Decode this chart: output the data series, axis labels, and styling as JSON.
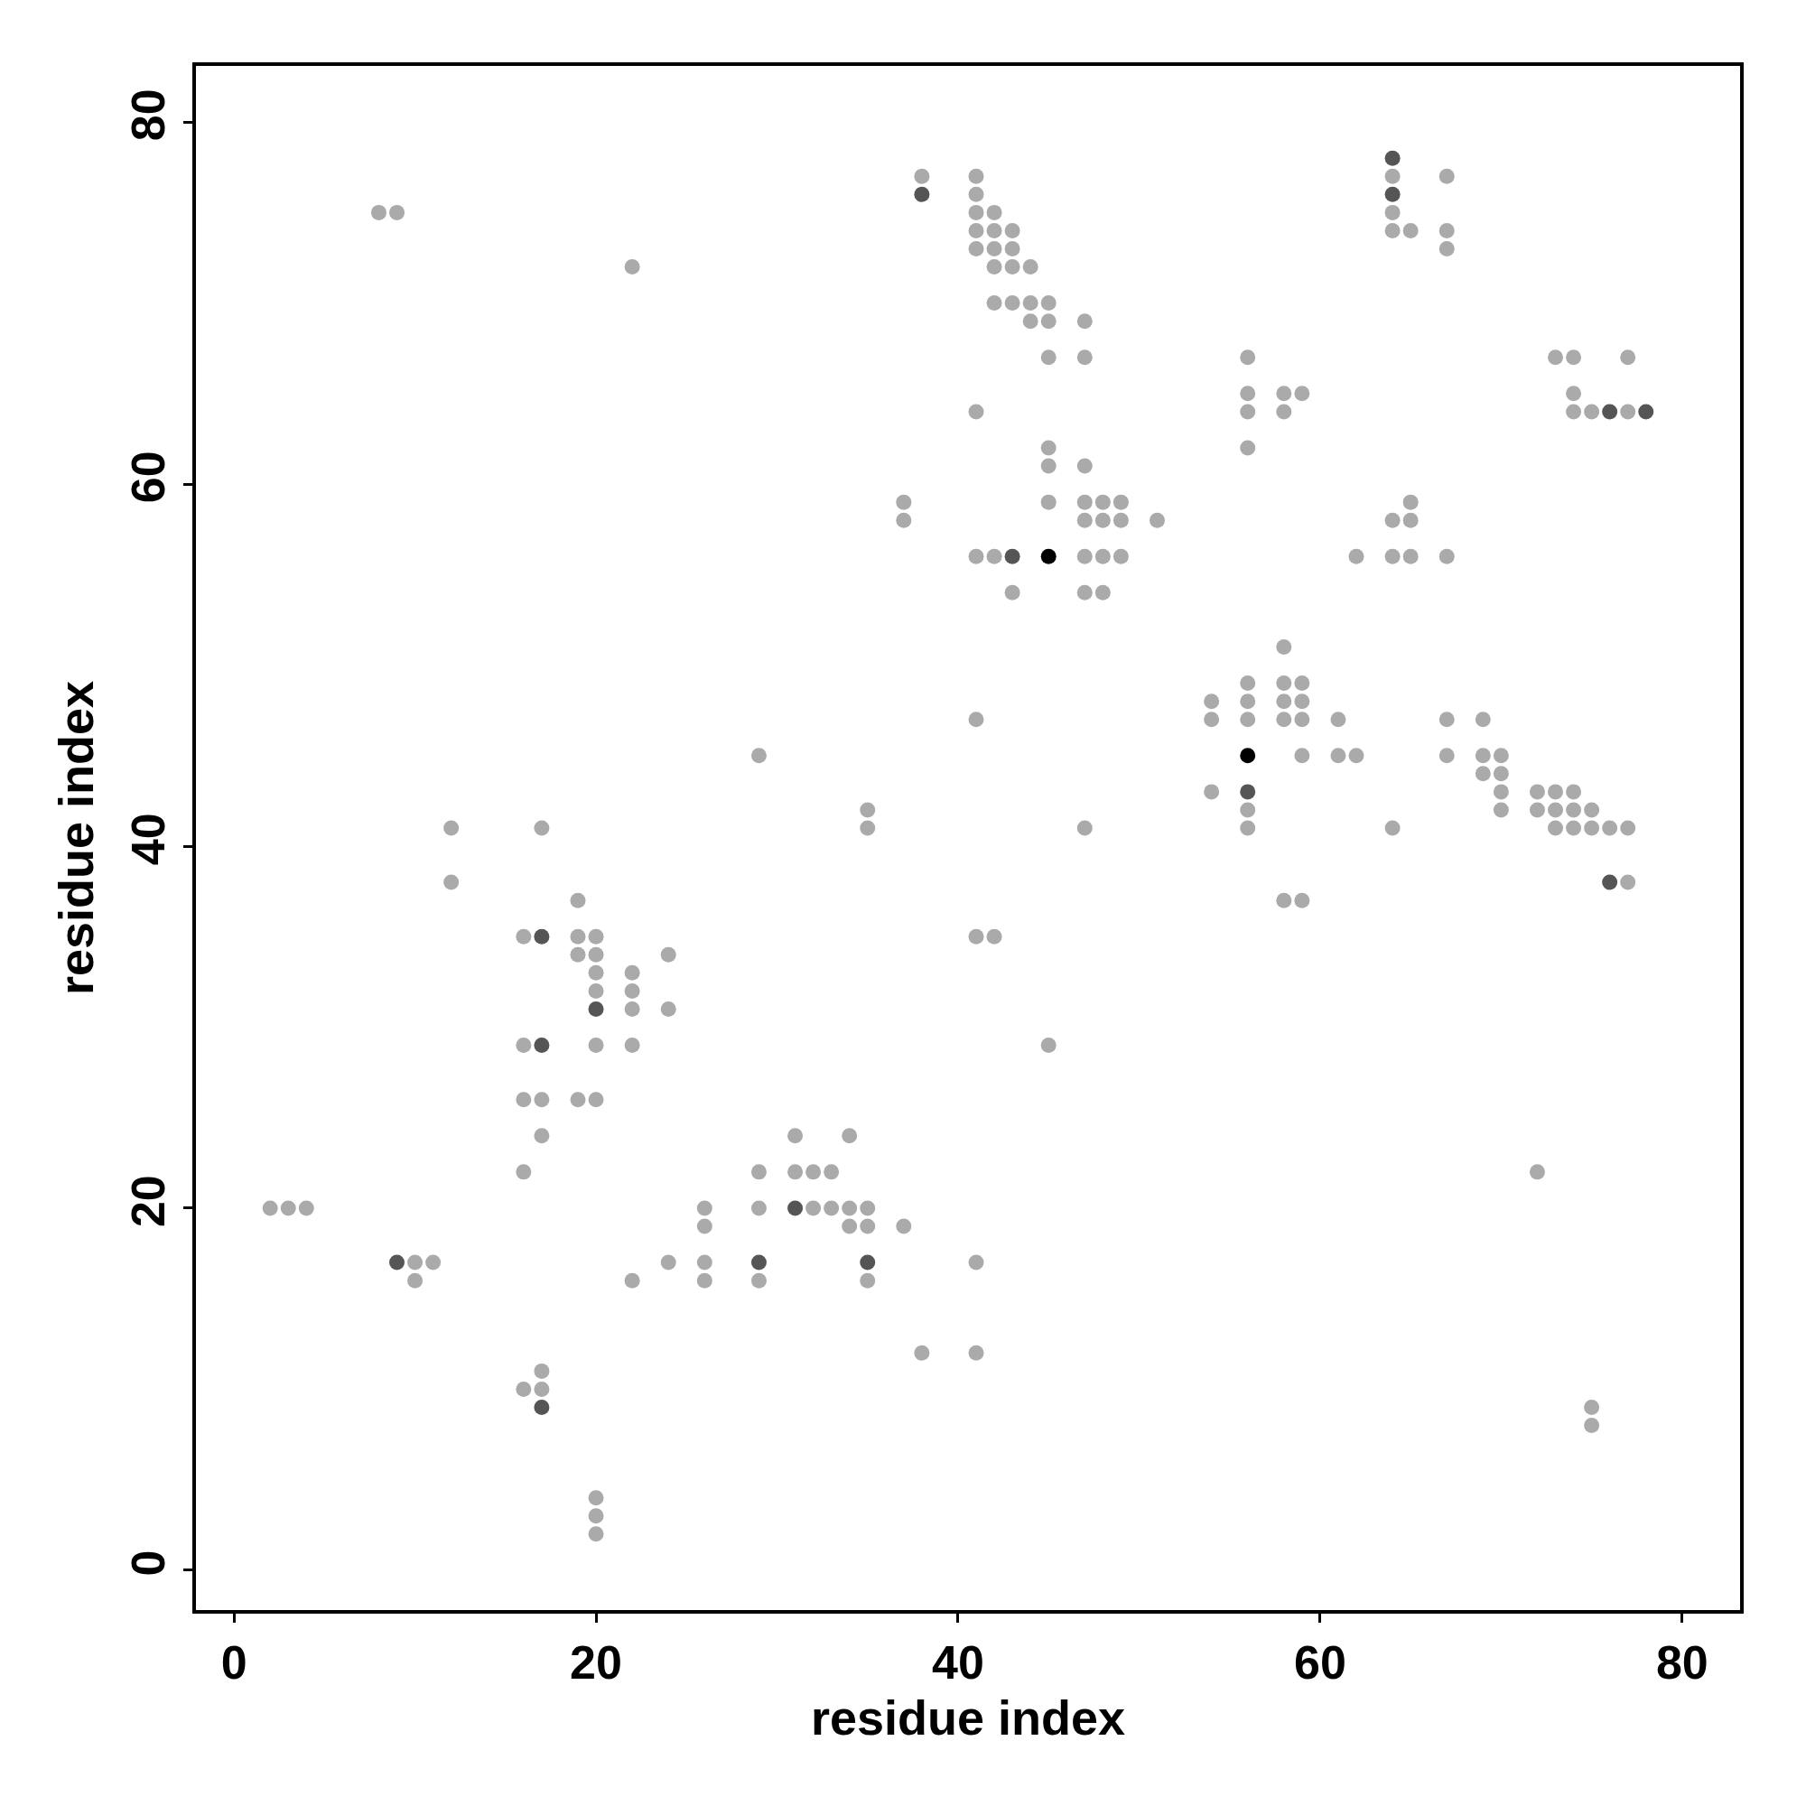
{
  "chart_data": {
    "type": "scatter",
    "xlabel": "residue index",
    "ylabel": "residue index",
    "xlim": [
      -2.1,
      83.2
    ],
    "ylim": [
      -2.2,
      83.1
    ],
    "xticks": [
      0,
      20,
      40,
      60,
      80
    ],
    "yticks": [
      0,
      20,
      40,
      60,
      80
    ],
    "marker": "circle",
    "series": [
      {
        "color": "#aaaaaa",
        "x": [
          38,
          41,
          64,
          67,
          41,
          8,
          9,
          41,
          42,
          64,
          41,
          42,
          43,
          64,
          65,
          67,
          41,
          42,
          43,
          67,
          22,
          42,
          43,
          44,
          42,
          43,
          44,
          45,
          44,
          45,
          47,
          45,
          47,
          56,
          73,
          74,
          77,
          56,
          58,
          59,
          74,
          41,
          56,
          58,
          74,
          75,
          77,
          45,
          56,
          45,
          47,
          37,
          45,
          47,
          48,
          49,
          65,
          37,
          47,
          48,
          49,
          51,
          64,
          65,
          41,
          42,
          47,
          48,
          49,
          62,
          64,
          65,
          67,
          43,
          47,
          48,
          58,
          56,
          58,
          59,
          54,
          56,
          58,
          59,
          41,
          54,
          56,
          58,
          59,
          61,
          67,
          69,
          29,
          59,
          61,
          62,
          67,
          69,
          70,
          69,
          70,
          54,
          70,
          72,
          73,
          74,
          35,
          56,
          70,
          72,
          73,
          74,
          75,
          12,
          17,
          35,
          47,
          56,
          64,
          73,
          74,
          75,
          76,
          77,
          12,
          77,
          19,
          58,
          59,
          16,
          19,
          20,
          41,
          42,
          19,
          20,
          24,
          20,
          22,
          20,
          22,
          22,
          24,
          16,
          20,
          22,
          45,
          16,
          17,
          19,
          20,
          17,
          31,
          34,
          16,
          29,
          31,
          32,
          33,
          72,
          2,
          3,
          4,
          26,
          29,
          32,
          33,
          34,
          35,
          26,
          34,
          35,
          37,
          10,
          11,
          24,
          26,
          41,
          10,
          22,
          26,
          29,
          35,
          38,
          41,
          17,
          16,
          17,
          75,
          75,
          20,
          20,
          20
        ],
        "values": [
          77,
          77,
          77,
          77,
          76,
          75,
          75,
          75,
          75,
          75,
          74,
          74,
          74,
          74,
          74,
          74,
          73,
          73,
          73,
          73,
          72,
          72,
          72,
          72,
          70,
          70,
          70,
          70,
          69,
          69,
          69,
          67,
          67,
          67,
          67,
          67,
          67,
          65,
          65,
          65,
          65,
          64,
          64,
          64,
          64,
          64,
          64,
          62,
          62,
          61,
          61,
          59,
          59,
          59,
          59,
          59,
          59,
          58,
          58,
          58,
          58,
          58,
          58,
          58,
          56,
          56,
          56,
          56,
          56,
          56,
          56,
          56,
          56,
          54,
          54,
          54,
          51,
          49,
          49,
          49,
          48,
          48,
          48,
          48,
          47,
          47,
          47,
          47,
          47,
          47,
          47,
          47,
          45,
          45,
          45,
          45,
          45,
          45,
          45,
          44,
          44,
          43,
          43,
          43,
          43,
          43,
          42,
          42,
          42,
          42,
          42,
          42,
          42,
          41,
          41,
          41,
          41,
          41,
          41,
          41,
          41,
          41,
          41,
          41,
          38,
          38,
          37,
          37,
          37,
          35,
          35,
          35,
          35,
          35,
          34,
          34,
          34,
          33,
          33,
          32,
          32,
          31,
          31,
          29,
          29,
          29,
          29,
          26,
          26,
          26,
          26,
          24,
          24,
          24,
          22,
          22,
          22,
          22,
          22,
          22,
          20,
          20,
          20,
          20,
          20,
          20,
          20,
          20,
          20,
          19,
          19,
          19,
          19,
          17,
          17,
          17,
          17,
          17,
          16,
          16,
          16,
          16,
          16,
          12,
          12,
          11,
          10,
          10,
          9,
          8,
          4,
          3,
          2
        ]
      },
      {
        "color": "#555555",
        "x": [
          64,
          38,
          64,
          76,
          78,
          43,
          56,
          76,
          17,
          20,
          17,
          31,
          9,
          29,
          35,
          17
        ],
        "values": [
          78,
          76,
          76,
          64,
          64,
          56,
          43,
          38,
          35,
          31,
          29,
          20,
          17,
          17,
          17,
          9
        ]
      },
      {
        "color": "#000000",
        "x": [
          45,
          56
        ],
        "values": [
          56,
          45
        ]
      }
    ]
  }
}
